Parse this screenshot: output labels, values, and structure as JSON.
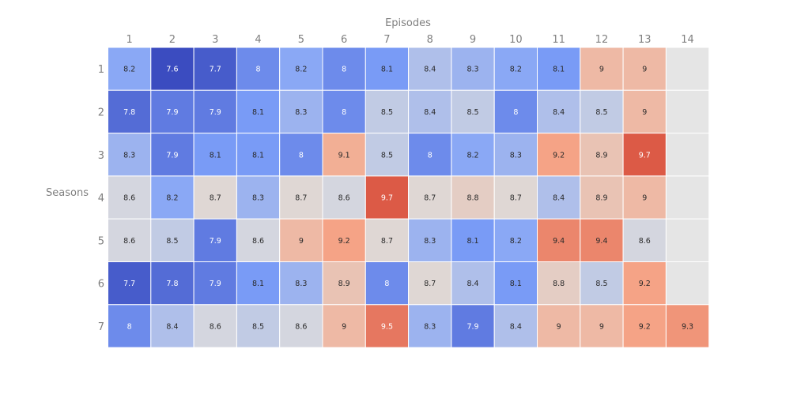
{
  "chart_data": {
    "type": "heatmap",
    "xlabel": "Episodes",
    "ylabel": "Seasons",
    "x_categories": [
      "1",
      "2",
      "3",
      "4",
      "5",
      "6",
      "7",
      "8",
      "9",
      "10",
      "11",
      "12",
      "13",
      "14"
    ],
    "y_categories": [
      "1",
      "2",
      "3",
      "4",
      "5",
      "6",
      "7"
    ],
    "x_axis_position": "top",
    "grid": false,
    "missing_color": "#e5e5e5",
    "colorscale": "coolwarm",
    "values": [
      [
        8.2,
        7.6,
        7.7,
        8,
        8.2,
        8,
        8.1,
        8.4,
        8.3,
        8.2,
        8.1,
        9,
        9,
        null
      ],
      [
        7.8,
        7.9,
        7.9,
        8.1,
        8.3,
        8,
        8.5,
        8.4,
        8.5,
        8,
        8.4,
        8.5,
        9,
        null
      ],
      [
        8.3,
        7.9,
        8.1,
        8.1,
        8,
        9.1,
        8.5,
        8,
        8.2,
        8.3,
        9.2,
        8.9,
        9.7,
        null
      ],
      [
        8.6,
        8.2,
        8.7,
        8.3,
        8.7,
        8.6,
        9.7,
        8.7,
        8.8,
        8.7,
        8.4,
        8.9,
        9,
        null
      ],
      [
        8.6,
        8.5,
        7.9,
        8.6,
        9,
        9.2,
        8.7,
        8.3,
        8.1,
        8.2,
        9.4,
        9.4,
        8.6,
        null
      ],
      [
        7.7,
        7.8,
        7.9,
        8.1,
        8.3,
        8.9,
        8,
        8.7,
        8.4,
        8.1,
        8.8,
        8.5,
        9.2,
        null
      ],
      [
        8,
        8.4,
        8.6,
        8.5,
        8.6,
        9,
        9.5,
        8.3,
        7.9,
        8.4,
        9,
        9,
        9.2,
        9.3
      ]
    ]
  }
}
